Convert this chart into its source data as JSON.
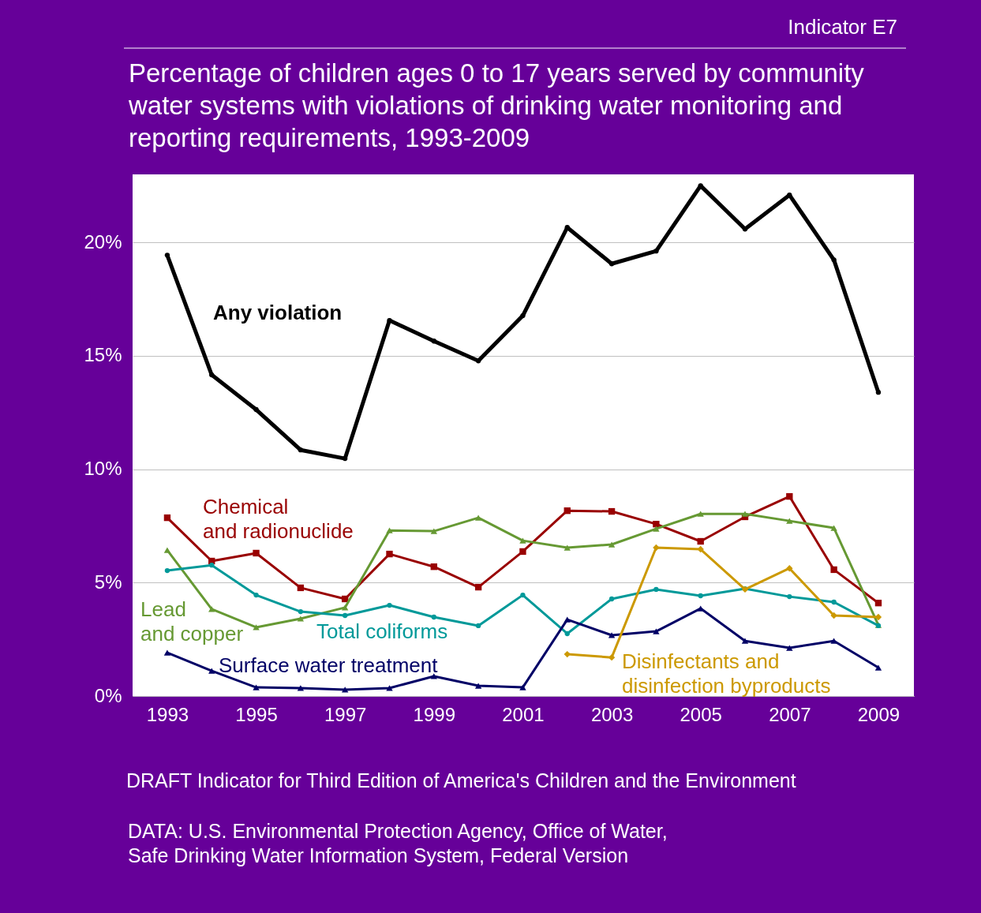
{
  "chart_data": {
    "type": "line",
    "title": "Percentage of children ages 0 to 17 years served by community\nwater systems with violations of drinking water monitoring and\nreporting requirements, 1993-2009",
    "x": [
      1993,
      1994,
      1995,
      1996,
      1997,
      1998,
      1999,
      2000,
      2001,
      2002,
      2003,
      2004,
      2005,
      2006,
      2007,
      2008,
      2009
    ],
    "series": [
      {
        "name": "Any violation",
        "color": "#000000",
        "marker": "circle",
        "values": [
          19.44,
          14.16,
          12.63,
          10.85,
          10.47,
          16.56,
          15.65,
          14.78,
          16.77,
          20.66,
          19.06,
          19.62,
          22.5,
          20.59,
          22.09,
          19.23,
          13.39
        ]
      },
      {
        "name": "Chemical\nand radionuclide",
        "color": "#990000",
        "marker": "square",
        "values": [
          7.86,
          5.95,
          6.3,
          4.77,
          4.28,
          6.26,
          5.7,
          4.8,
          6.37,
          8.17,
          8.14,
          7.58,
          6.82,
          7.9,
          8.8,
          5.57,
          4.1
        ]
      },
      {
        "name": "Lead\nand copper",
        "color": "#669933",
        "marker": "triangle",
        "values": [
          6.43,
          3.83,
          3.03,
          3.41,
          3.9,
          7.3,
          7.27,
          7.86,
          6.85,
          6.54,
          6.68,
          7.37,
          8.03,
          8.03,
          7.72,
          7.41,
          3.13
        ]
      },
      {
        "name": "Total coliforms",
        "color": "#009999",
        "marker": "circle",
        "values": [
          5.53,
          5.77,
          4.45,
          3.72,
          3.55,
          4.0,
          3.48,
          3.1,
          4.45,
          2.75,
          4.28,
          4.7,
          4.42,
          4.73,
          4.38,
          4.14,
          3.1
        ]
      },
      {
        "name": "Surface water treatment",
        "color": "#000066",
        "marker": "triangle",
        "values": [
          1.91,
          1.11,
          0.38,
          0.35,
          0.28,
          0.35,
          0.87,
          0.45,
          0.38,
          3.37,
          2.68,
          2.85,
          3.86,
          2.43,
          2.12,
          2.43,
          1.25
        ]
      },
      {
        "name": "Disinfectants and\ndisinfection byproducts",
        "color": "#cc9900",
        "marker": "diamond",
        "values": [
          null,
          null,
          null,
          null,
          null,
          null,
          null,
          null,
          null,
          1.84,
          1.7,
          6.54,
          6.47,
          4.7,
          5.63,
          3.55,
          3.48
        ]
      }
    ],
    "xlim": [
      1992.22,
      2009.8
    ],
    "xticks": [
      1993,
      1995,
      1997,
      1999,
      2001,
      2003,
      2005,
      2007,
      2009
    ],
    "ylim": [
      0,
      23
    ],
    "yticks": [
      {
        "value": 0,
        "label": "0%"
      },
      {
        "value": 5,
        "label": "5%"
      },
      {
        "value": 10,
        "label": "10%"
      },
      {
        "value": 15,
        "label": "15%"
      },
      {
        "value": 20,
        "label": "20%"
      }
    ],
    "grid": "y",
    "line_style": "solid",
    "annotations": [
      "Indicator E7",
      "DRAFT Indicator for Third Edition of America's Children and the Environment",
      "DATA: U.S. Environmental Protection Agency, Office of Water,\nSafe Drinking Water Information System, Federal Version"
    ]
  }
}
